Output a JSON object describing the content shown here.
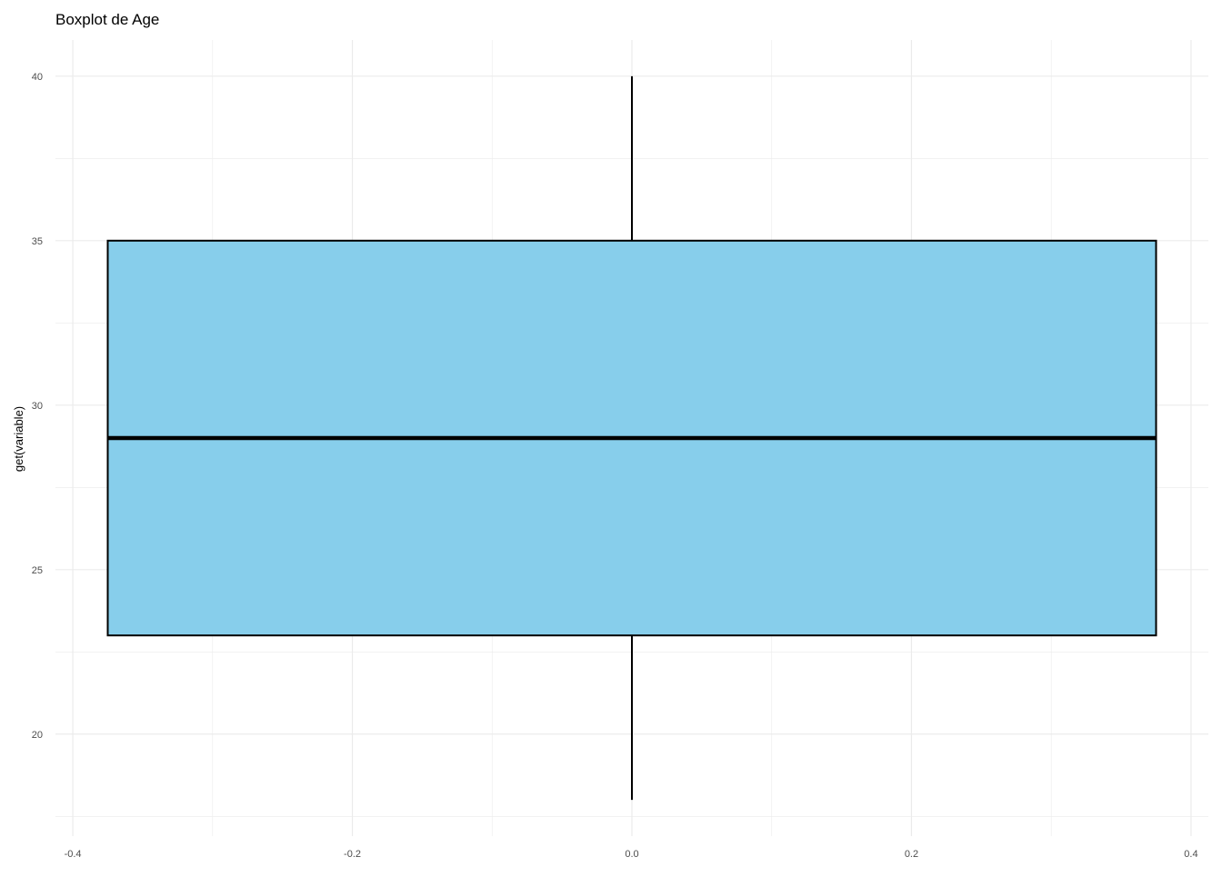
{
  "chart_data": {
    "type": "boxplot",
    "title": "Boxplot de Age",
    "xlabel": "",
    "ylabel": "get(variable)",
    "xlim": [
      -0.4124,
      0.4124
    ],
    "ylim": [
      16.9,
      41.1
    ],
    "x_ticks": [
      -0.4,
      -0.2,
      0.0,
      0.2,
      0.4
    ],
    "x_tick_labels": [
      "-0.4",
      "-0.2",
      "0.0",
      "0.2",
      "0.4"
    ],
    "y_ticks": [
      20,
      25,
      30,
      35,
      40
    ],
    "y_tick_labels": [
      "20",
      "25",
      "30",
      "35",
      "40"
    ],
    "grid": true,
    "box": {
      "x_center": 0.0,
      "x_range": [
        -0.375,
        0.375
      ],
      "whisker_low": 18,
      "q1": 23,
      "median": 29,
      "q3": 35,
      "whisker_high": 40
    },
    "colors": {
      "fill": "#87CEEB",
      "outline": "#000000",
      "grid": "#EBEBEB"
    }
  }
}
